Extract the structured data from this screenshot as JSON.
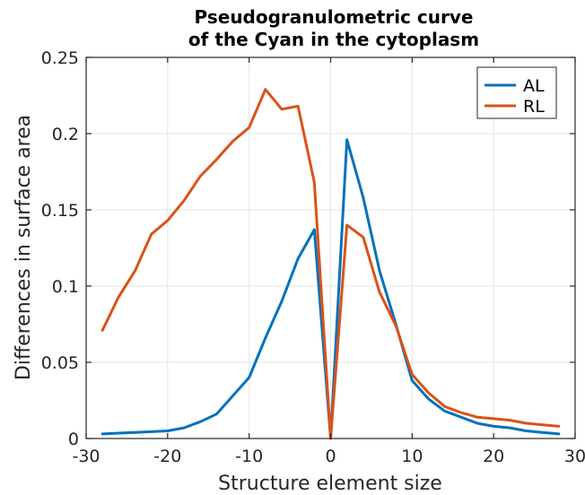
{
  "chart_data": {
    "type": "line",
    "title": [
      "Pseudogranulometric curve",
      "of the Cyan in the cytoplasm"
    ],
    "xlabel": "Structure element size",
    "ylabel": "Differences in surface area",
    "xlim": [
      -30,
      30
    ],
    "ylim": [
      0,
      0.25
    ],
    "xticks": [
      -30,
      -20,
      -10,
      0,
      10,
      20,
      30
    ],
    "xtick_labels": [
      "-30",
      "-20",
      "-10",
      "0",
      "10",
      "20",
      "30"
    ],
    "yticks": [
      0,
      0.05,
      0.1,
      0.15,
      0.2,
      0.25
    ],
    "ytick_labels": [
      "0",
      "0.05",
      "0.1",
      "0.15",
      "0.2",
      "0.25"
    ],
    "grid": true,
    "legend_position": "top-right",
    "series": [
      {
        "name": "AL",
        "color": "#0072BD",
        "points": [
          [
            -28,
            0.003
          ],
          [
            -26,
            0.0035
          ],
          [
            -24,
            0.004
          ],
          [
            -22,
            0.0045
          ],
          [
            -20,
            0.005
          ],
          [
            -18,
            0.007
          ],
          [
            -16,
            0.011
          ],
          [
            -14,
            0.016
          ],
          [
            -12,
            0.028
          ],
          [
            -10,
            0.04
          ],
          [
            -8,
            0.066
          ],
          [
            -6,
            0.09
          ],
          [
            -4,
            0.118
          ],
          [
            -2,
            0.137
          ],
          [
            0,
            0.0
          ],
          [
            2,
            0.196
          ],
          [
            4,
            0.158
          ],
          [
            6,
            0.11
          ],
          [
            8,
            0.075
          ],
          [
            10,
            0.038
          ],
          [
            12,
            0.026
          ],
          [
            14,
            0.018
          ],
          [
            16,
            0.014
          ],
          [
            18,
            0.01
          ],
          [
            20,
            0.008
          ],
          [
            22,
            0.007
          ],
          [
            24,
            0.005
          ],
          [
            26,
            0.004
          ],
          [
            28,
            0.003
          ]
        ]
      },
      {
        "name": "RL",
        "color": "#D95319",
        "points": [
          [
            -28,
            0.071
          ],
          [
            -26,
            0.093
          ],
          [
            -24,
            0.11
          ],
          [
            -22,
            0.134
          ],
          [
            -20,
            0.143
          ],
          [
            -18,
            0.156
          ],
          [
            -16,
            0.172
          ],
          [
            -14,
            0.183
          ],
          [
            -12,
            0.195
          ],
          [
            -10,
            0.204
          ],
          [
            -8,
            0.229
          ],
          [
            -6,
            0.216
          ],
          [
            -4,
            0.218
          ],
          [
            -2,
            0.168
          ],
          [
            0,
            0.0
          ],
          [
            2,
            0.14
          ],
          [
            4,
            0.132
          ],
          [
            6,
            0.096
          ],
          [
            8,
            0.074
          ],
          [
            10,
            0.042
          ],
          [
            12,
            0.03
          ],
          [
            14,
            0.021
          ],
          [
            16,
            0.017
          ],
          [
            18,
            0.014
          ],
          [
            20,
            0.013
          ],
          [
            22,
            0.012
          ],
          [
            24,
            0.01
          ],
          [
            26,
            0.009
          ],
          [
            28,
            0.008
          ]
        ]
      }
    ]
  }
}
